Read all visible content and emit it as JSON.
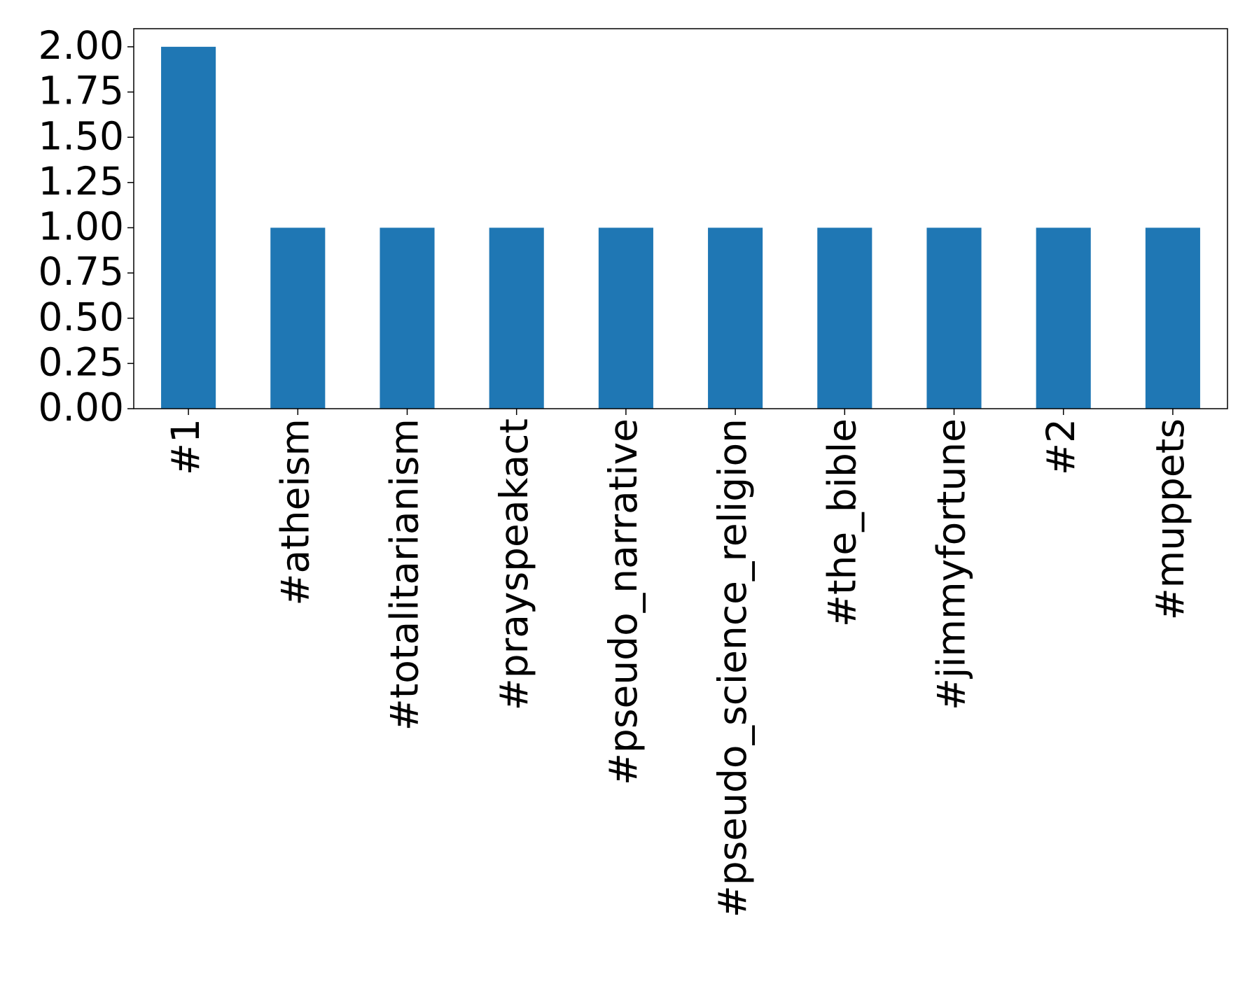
{
  "chart_data": {
    "type": "bar",
    "categories": [
      "#1",
      "#atheism",
      "#totalitarianism",
      "#prayspeakact",
      "#pseudo_narrative",
      "#pseudo_science_religion",
      "#the_bible",
      "#jimmyfortune",
      "#2",
      "#muppets"
    ],
    "values": [
      2,
      1,
      1,
      1,
      1,
      1,
      1,
      1,
      1,
      1
    ],
    "color": "#1f77b4",
    "ylim": [
      0,
      2.1
    ],
    "yticks": [
      {
        "value": 0,
        "label": "0.00"
      },
      0.25,
      {
        "value": 0.5,
        "label": "0.50"
      },
      0.75,
      {
        "value": 1,
        "label": "1.00"
      },
      1.25,
      {
        "value": 1.5,
        "label": "1.50"
      },
      1.75,
      {
        "value": 2,
        "label": "2.00"
      }
    ],
    "grid": false
  }
}
